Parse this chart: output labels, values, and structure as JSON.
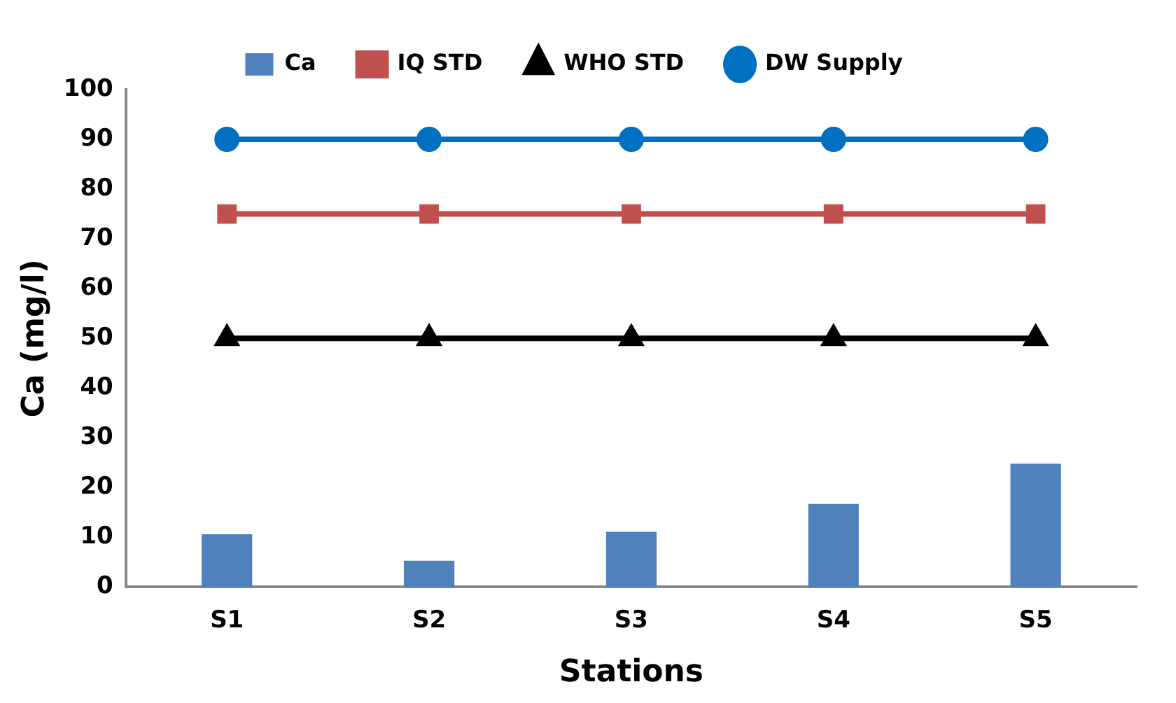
{
  "chart_data": {
    "type": "bar",
    "xlabel": "Stations",
    "ylabel": "Ca (mg/l)",
    "categories": [
      "S1",
      "S2",
      "S3",
      "S4",
      "S5"
    ],
    "series": [
      {
        "name": "Ca",
        "color": "#4f81bd",
        "values": [
          10.6,
          5.3,
          11.1,
          16.7,
          24.8
        ]
      },
      {
        "name": "IQ STD",
        "type": "line",
        "color": "#c0504d",
        "marker": "square",
        "values": [
          75,
          75,
          75,
          75,
          75
        ]
      },
      {
        "name": "WHO STD",
        "type": "line",
        "color": "#000000",
        "marker": "triangle",
        "values": [
          50,
          50,
          50,
          50,
          50
        ]
      },
      {
        "name": "DW Supply",
        "type": "line",
        "color": "#0070c0",
        "marker": "circle",
        "values": [
          90,
          90,
          90,
          90,
          90
        ]
      }
    ],
    "ylim": [
      0,
      100
    ],
    "yticks": [
      0,
      10,
      20,
      30,
      40,
      50,
      60,
      70,
      80,
      90,
      100
    ],
    "grid": false,
    "legend": "top"
  }
}
